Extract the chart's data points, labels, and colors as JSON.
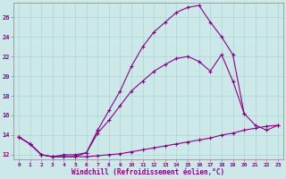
{
  "xlabel": "Windchill (Refroidissement éolien,°C)",
  "bg_color": "#cce8e8",
  "line_color": "#880088",
  "xlim": [
    -0.5,
    23.5
  ],
  "ylim": [
    11.5,
    27.5
  ],
  "xticks": [
    0,
    1,
    2,
    3,
    4,
    5,
    6,
    7,
    8,
    9,
    10,
    11,
    12,
    13,
    14,
    15,
    16,
    17,
    18,
    19,
    20,
    21,
    22,
    23
  ],
  "yticks": [
    12,
    14,
    16,
    18,
    20,
    22,
    24,
    26
  ],
  "grid_color": "#aad4d4",
  "series1_x": [
    0,
    1,
    2,
    3,
    4,
    5,
    6,
    7,
    8,
    9,
    10,
    11,
    12,
    13,
    14,
    15,
    16,
    17,
    18,
    19,
    20,
    21,
    22,
    23
  ],
  "series1_y": [
    13.8,
    13.1,
    12.0,
    11.8,
    11.8,
    11.8,
    11.8,
    11.9,
    12.0,
    12.1,
    12.3,
    12.5,
    12.7,
    12.9,
    13.1,
    13.3,
    13.5,
    13.7,
    14.0,
    14.2,
    14.5,
    14.7,
    14.9,
    15.0
  ],
  "series2_x": [
    0,
    1,
    2,
    3,
    4,
    5,
    6,
    7,
    8,
    9,
    10,
    11,
    12,
    13,
    14,
    15,
    16,
    17,
    18,
    19,
    20,
    21,
    22,
    23
  ],
  "series2_y": [
    13.8,
    13.1,
    12.0,
    11.8,
    11.8,
    11.8,
    12.2,
    14.2,
    15.5,
    17.0,
    18.5,
    19.5,
    20.5,
    21.2,
    21.8,
    22.0,
    21.5,
    20.5,
    22.2,
    19.5,
    16.2,
    15.0,
    14.5,
    15.0
  ],
  "series3_x": [
    0,
    1,
    2,
    3,
    4,
    5,
    6,
    7,
    8,
    9,
    10,
    11,
    12,
    13,
    14,
    15,
    16,
    17,
    18,
    19,
    20
  ],
  "series3_y": [
    13.8,
    13.1,
    12.0,
    11.8,
    12.0,
    12.0,
    12.2,
    14.5,
    16.5,
    18.5,
    21.0,
    23.0,
    24.5,
    25.5,
    26.5,
    27.0,
    27.2,
    25.5,
    24.0,
    22.2,
    16.2
  ]
}
